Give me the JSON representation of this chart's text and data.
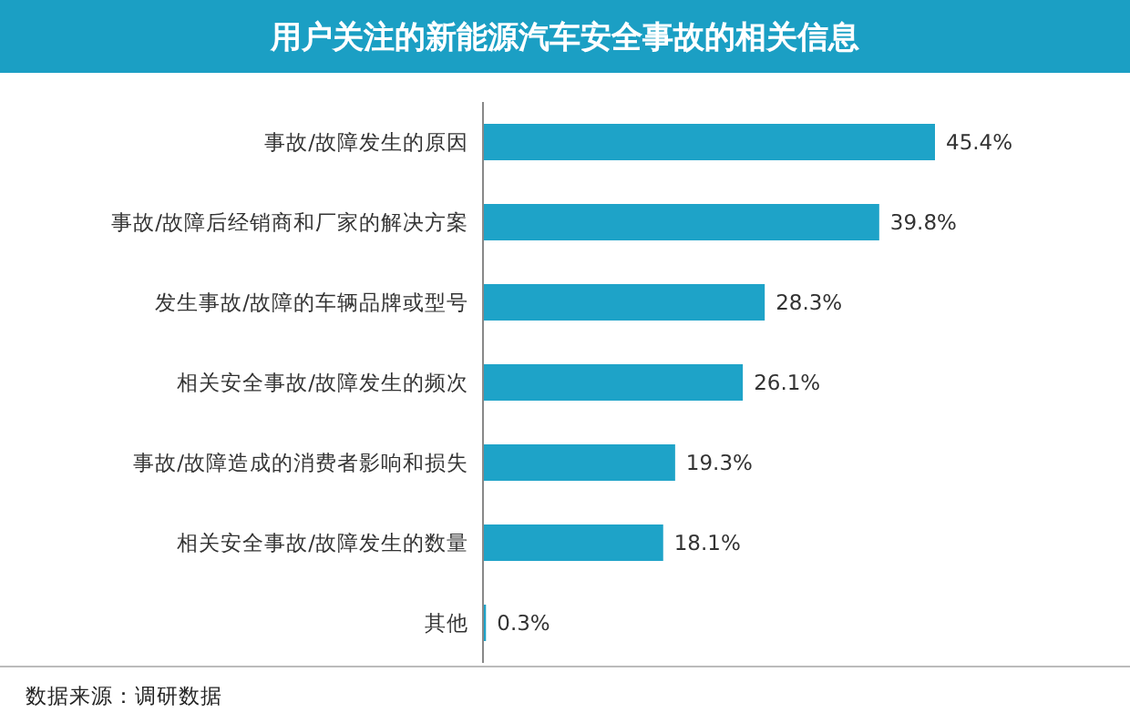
{
  "chart_data": {
    "type": "bar",
    "orientation": "horizontal",
    "title": "用户关注的新能源汽车安全事故的相关信息",
    "categories": [
      "事故/故障发生的原因",
      "事故/故障后经销商和厂家的解决方案",
      "发生事故/故障的车辆品牌或型号",
      "相关安全事故/故障发生的频次",
      "事故/故障造成的消费者影响和损失",
      "相关安全事故/故障发生的数量",
      "其他"
    ],
    "values": [
      45.4,
      39.8,
      28.3,
      26.1,
      19.3,
      18.1,
      0.3
    ],
    "value_labels": [
      "45.4%",
      "39.8%",
      "28.3%",
      "26.1%",
      "19.3%",
      "18.1%",
      "0.3%"
    ],
    "color": "#1ea3c8",
    "annotations": [
      "数据来源：调研数据"
    ]
  }
}
